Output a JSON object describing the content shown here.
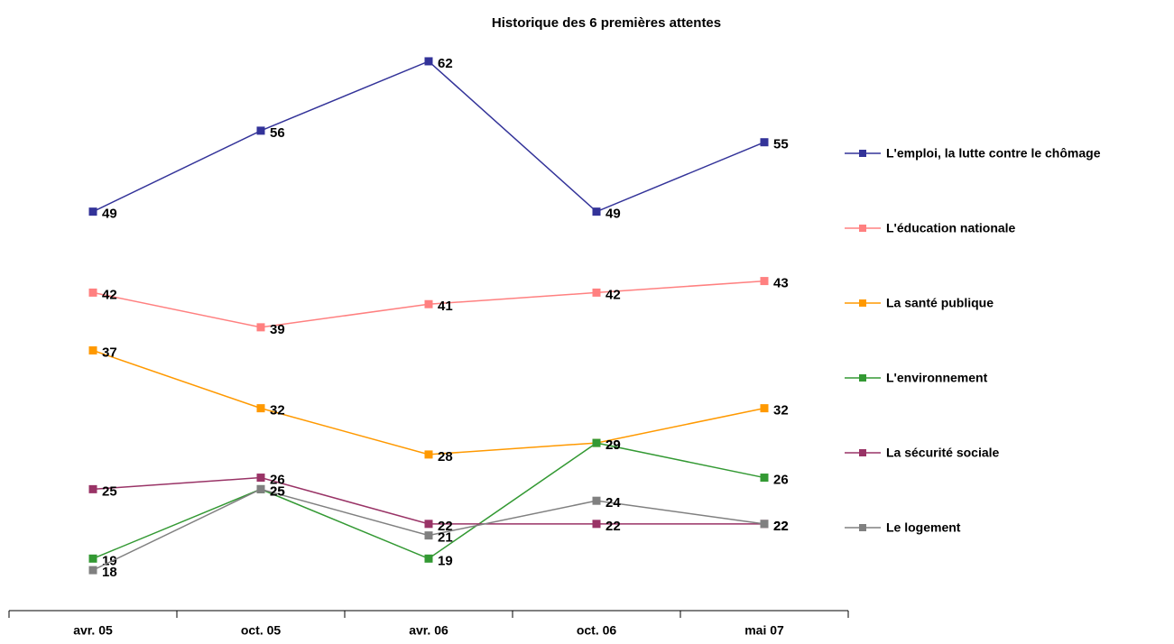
{
  "chart_data": {
    "type": "line",
    "title": "Historique des 6 premières attentes",
    "categories": [
      "avr. 05",
      "oct. 05",
      "avr. 06",
      "oct. 06",
      "mai 07"
    ],
    "series": [
      {
        "name": "L'emploi, la lutte contre le chômage",
        "color": "#333399",
        "values": [
          49,
          56,
          62,
          49,
          55
        ]
      },
      {
        "name": "L'éducation nationale",
        "color": "#ff8080",
        "values": [
          42,
          39,
          41,
          42,
          43
        ]
      },
      {
        "name": "La santé publique",
        "color": "#ff9900",
        "values": [
          37,
          32,
          28,
          29,
          32
        ]
      },
      {
        "name": "L'environnement",
        "color": "#339933",
        "values": [
          19,
          25,
          19,
          29,
          26
        ]
      },
      {
        "name": "La sécurité sociale",
        "color": "#993366",
        "values": [
          25,
          26,
          22,
          22,
          22
        ]
      },
      {
        "name": "Le logement",
        "color": "#808080",
        "values": [
          18,
          25,
          21,
          24,
          22
        ]
      }
    ],
    "ylim": [
      14.5,
      65
    ],
    "legend": "right"
  }
}
